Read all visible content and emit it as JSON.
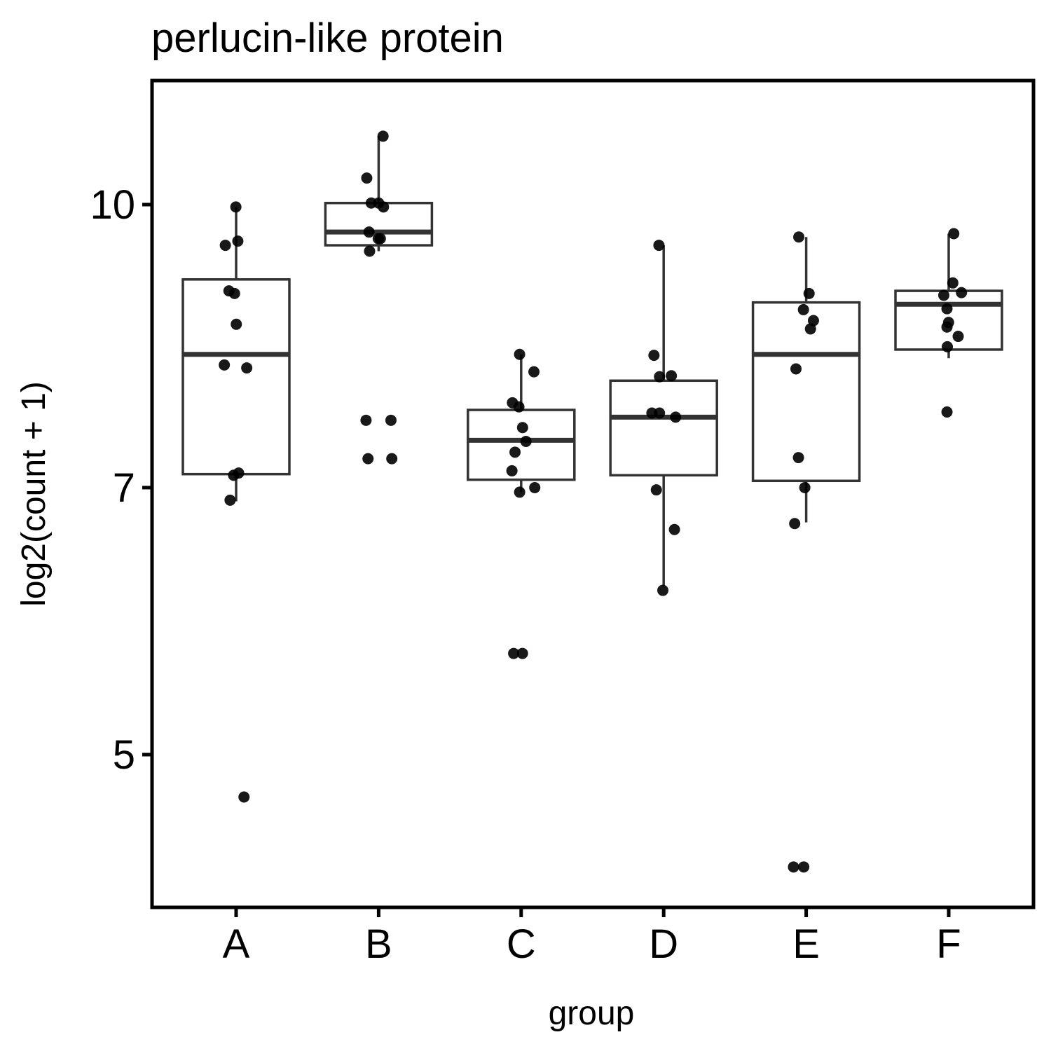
{
  "chart_data": {
    "type": "box",
    "title": "perlucin-like protein",
    "xlabel": "group",
    "ylabel": "log2(count + 1)",
    "y_scale": "log",
    "ylim": [
      4.3,
      11.2
    ],
    "yticks": [
      5,
      7,
      10
    ],
    "ytick_labels": [
      "5",
      "7",
      "10"
    ],
    "categories": [
      "A",
      "B",
      "C",
      "D",
      "E",
      "F"
    ],
    "grid": false,
    "legend": "none",
    "colors": {
      "box_stroke": "#333333",
      "points": "#000000",
      "frame": "#000000"
    },
    "boxes": [
      {
        "group": "A",
        "q1": 7.12,
        "median": 8.28,
        "q3": 9.1,
        "whisker_low": 6.88,
        "whisker_high": 9.97
      },
      {
        "group": "B",
        "q1": 9.5,
        "median": 9.66,
        "q3": 10.02,
        "whisker_low": 9.43,
        "whisker_high": 10.9
      },
      {
        "group": "C",
        "q1": 7.07,
        "median": 7.43,
        "q3": 7.72,
        "whisker_low": 6.96,
        "whisker_high": 8.28
      },
      {
        "group": "D",
        "q1": 7.11,
        "median": 7.65,
        "q3": 8.01,
        "whisker_low": 6.18,
        "whisker_high": 9.5
      },
      {
        "group": "E",
        "q1": 7.06,
        "median": 8.28,
        "q3": 8.84,
        "whisker_low": 6.7,
        "whisker_high": 9.6
      },
      {
        "group": "F",
        "q1": 8.33,
        "median": 8.82,
        "q3": 8.97,
        "whisker_low": 8.24,
        "whisker_high": 9.64
      }
    ],
    "points": [
      {
        "group": "A",
        "values": [
          9.97,
          9.55,
          9.5,
          8.97,
          8.94,
          8.6,
          8.17,
          8.14,
          7.13,
          7.11,
          6.89,
          4.74
        ]
      },
      {
        "group": "B",
        "values": [
          10.9,
          10.34,
          10.02,
          10.02,
          9.97,
          9.66,
          9.58,
          9.58,
          9.43,
          7.62,
          7.62,
          7.26,
          7.26
        ]
      },
      {
        "group": "C",
        "values": [
          8.28,
          8.1,
          7.79,
          7.75,
          7.55,
          7.42,
          7.32,
          7.15,
          7.0,
          6.96,
          5.68,
          5.68
        ]
      },
      {
        "group": "D",
        "values": [
          9.5,
          8.27,
          8.06,
          8.05,
          7.69,
          7.69,
          7.65,
          6.98,
          6.64,
          6.15
        ]
      },
      {
        "group": "E",
        "values": [
          9.6,
          8.94,
          8.76,
          8.64,
          8.55,
          8.13,
          7.27,
          7.0,
          6.69,
          4.34,
          4.34
        ]
      },
      {
        "group": "F",
        "values": [
          9.64,
          9.06,
          8.95,
          8.92,
          8.77,
          8.62,
          8.57,
          8.47,
          8.36,
          7.7
        ]
      }
    ]
  }
}
